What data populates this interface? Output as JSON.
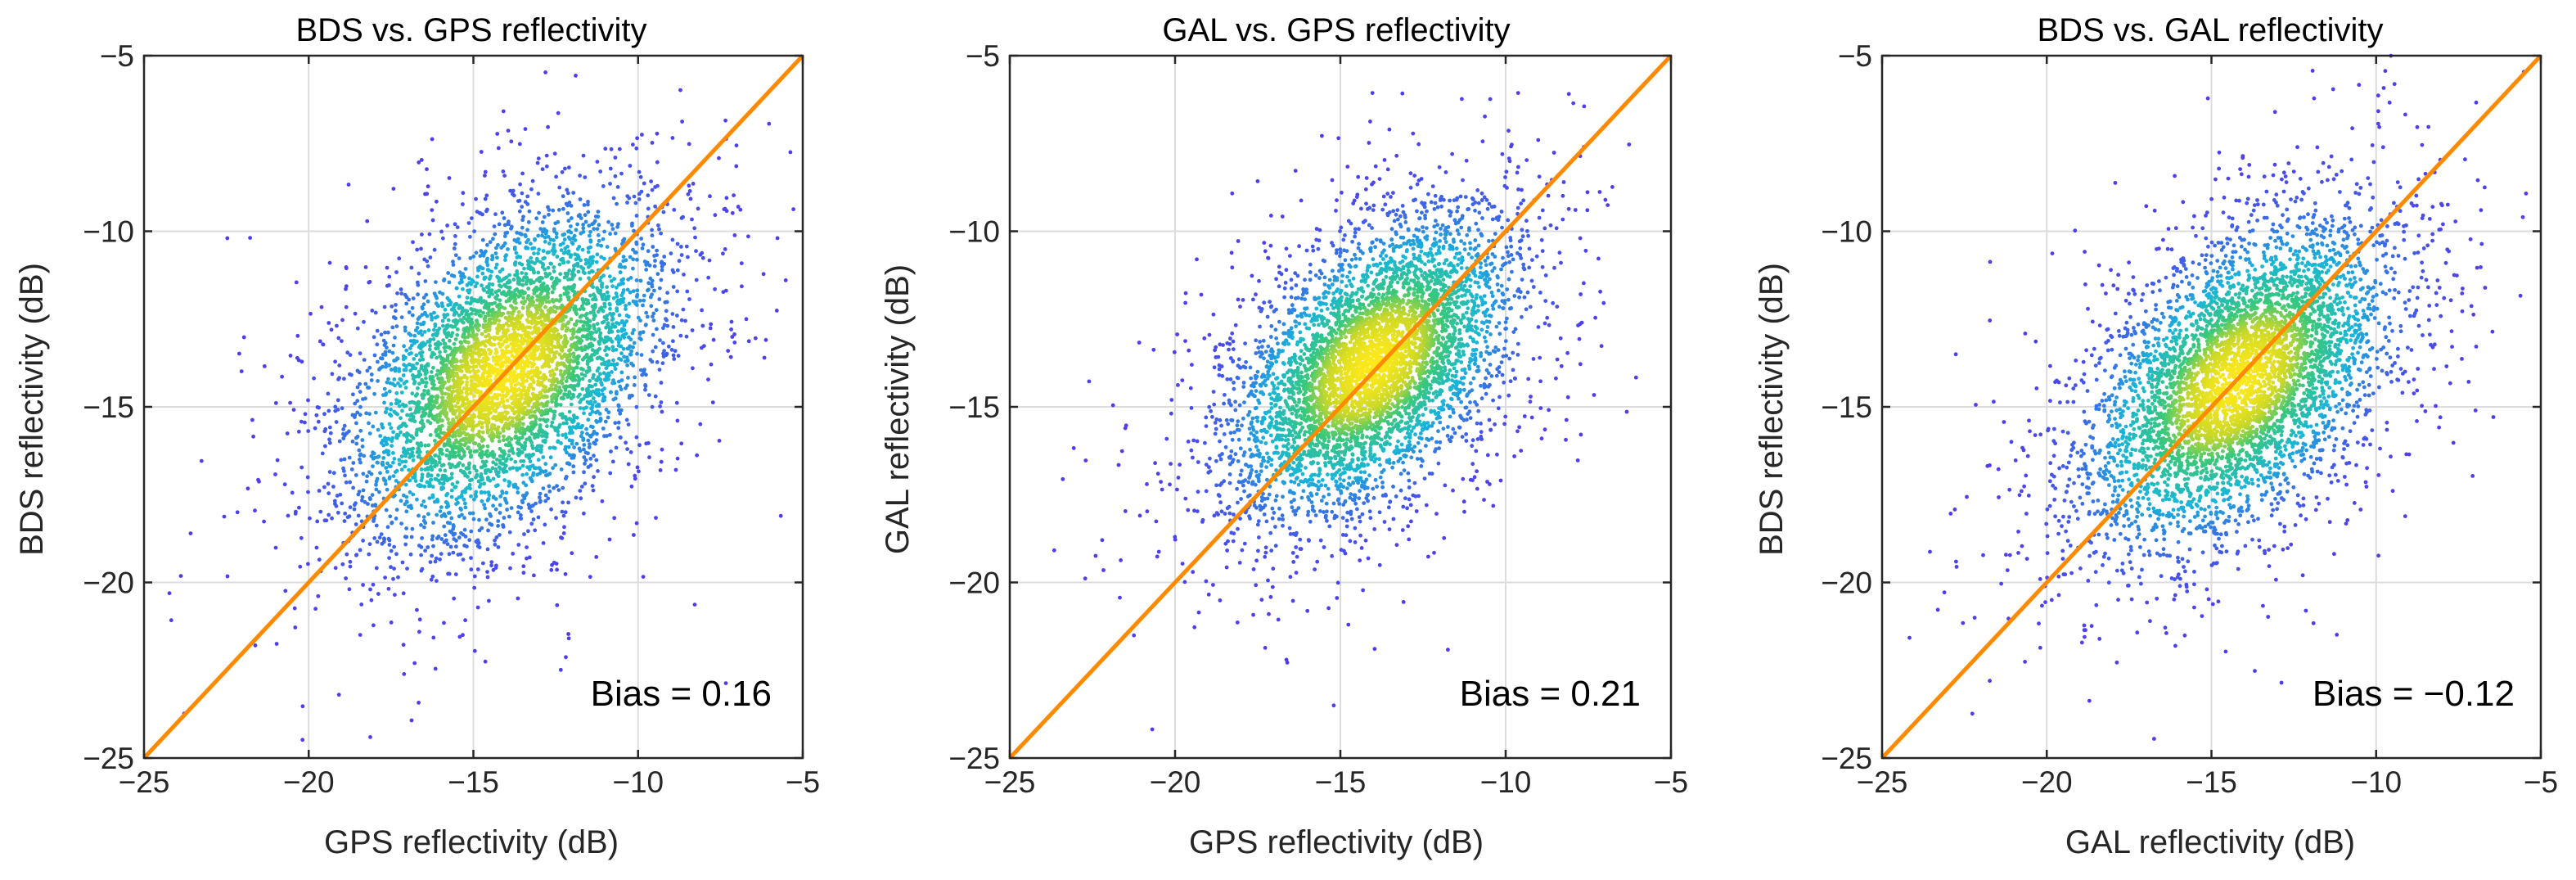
{
  "chart_data": [
    {
      "type": "scatter",
      "title": "BDS vs. GPS reflectivity",
      "xlabel": "GPS reflectivity (dB)",
      "ylabel": "BDS reflectivity (dB)",
      "xlim": [
        -25,
        -5
      ],
      "ylim": [
        -25,
        -5
      ],
      "xticks": [
        -25,
        -20,
        -15,
        -10,
        -5
      ],
      "yticks": [
        -25,
        -20,
        -15,
        -10,
        -5
      ],
      "xtick_labels": [
        "−25",
        "−20",
        "−15",
        "−10",
        "−5"
      ],
      "ytick_labels": [
        "−25",
        "−20",
        "−15",
        "−10",
        "−5"
      ],
      "grid": true,
      "reference_line": {
        "x": [
          -25,
          -5
        ],
        "y": [
          -25,
          -5
        ],
        "color": "#ff8a00"
      },
      "annotation": "Bias = 0.16",
      "bias": 0.16,
      "color_encoding": "point density (blue low → yellow high)",
      "density_center": [
        -14.0,
        -14.0
      ],
      "spread_along_diagonal_db": 2.6,
      "spread_across_diagonal_db": 1.6,
      "data_range": {
        "x": [
          -25,
          -5
        ],
        "y": [
          -25,
          -5
        ]
      }
    },
    {
      "type": "scatter",
      "title": "GAL vs. GPS reflectivity",
      "xlabel": "GPS reflectivity (dB)",
      "ylabel": "GAL reflectivity (dB)",
      "xlim": [
        -25,
        -5
      ],
      "ylim": [
        -25,
        -5
      ],
      "xticks": [
        -25,
        -20,
        -15,
        -10,
        -5
      ],
      "yticks": [
        -25,
        -20,
        -15,
        -10,
        -5
      ],
      "xtick_labels": [
        "−25",
        "−20",
        "−15",
        "−10",
        "−5"
      ],
      "ytick_labels": [
        "−25",
        "−20",
        "−15",
        "−10",
        "−5"
      ],
      "grid": true,
      "reference_line": {
        "x": [
          -25,
          -5
        ],
        "y": [
          -25,
          -5
        ],
        "color": "#ff8a00"
      },
      "annotation": "Bias = 0.21",
      "bias": 0.21,
      "color_encoding": "point density (blue low → yellow high)",
      "density_center": [
        -14.0,
        -13.8
      ],
      "spread_along_diagonal_db": 2.4,
      "spread_across_diagonal_db": 1.4,
      "data_range": {
        "x": [
          -25,
          -6
        ],
        "y": [
          -25,
          -6
        ]
      }
    },
    {
      "type": "scatter",
      "title": "BDS vs. GAL reflectivity",
      "xlabel": "GAL reflectivity (dB)",
      "ylabel": "BDS reflectivity (dB)",
      "xlim": [
        -25,
        -5
      ],
      "ylim": [
        -25,
        -5
      ],
      "xticks": [
        -25,
        -20,
        -15,
        -10,
        -5
      ],
      "yticks": [
        -25,
        -20,
        -15,
        -10,
        -5
      ],
      "xtick_labels": [
        "−25",
        "−20",
        "−15",
        "−10",
        "−5"
      ],
      "ytick_labels": [
        "−25",
        "−20",
        "−15",
        "−10",
        "−5"
      ],
      "grid": true,
      "reference_line": {
        "x": [
          -25,
          -5
        ],
        "y": [
          -25,
          -5
        ],
        "color": "#ff8a00"
      },
      "annotation": "Bias = −0.12",
      "bias": -0.12,
      "color_encoding": "point density (blue low → yellow high)",
      "density_center": [
        -14.2,
        -14.3
      ],
      "spread_along_diagonal_db": 2.6,
      "spread_across_diagonal_db": 1.5,
      "data_range": {
        "x": [
          -25,
          -5
        ],
        "y": [
          -25,
          -5
        ]
      }
    }
  ],
  "colors": {
    "identity_line": "#ff8a00",
    "grid": "#dcdcdc",
    "density_low": "#4b3cf0",
    "density_mid": "#17b6d9",
    "density_high": "#fbe61a"
  }
}
